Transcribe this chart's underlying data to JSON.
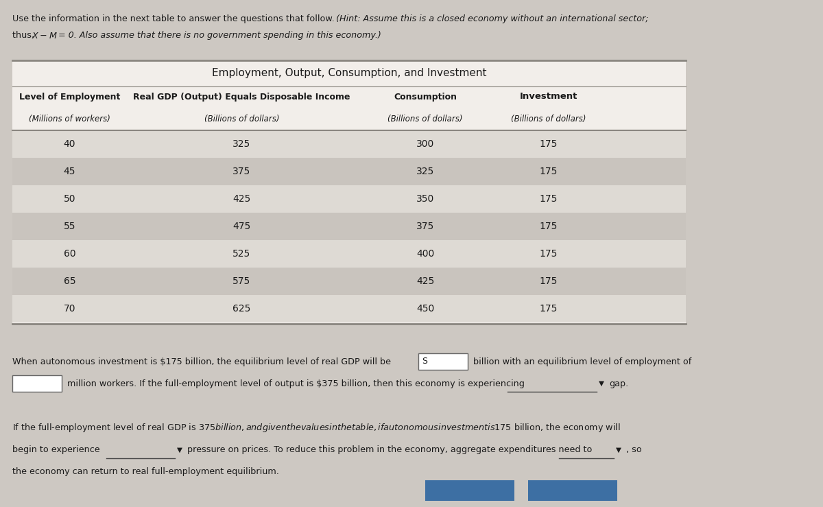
{
  "title": "Employment, Output, Consumption, and Investment",
  "col_headers": [
    "Level of Employment",
    "Real GDP (Output) Equals Disposable Income",
    "Consumption",
    "Investment"
  ],
  "col_subheaders": [
    "(Millions of workers)",
    "(Billions of dollars)",
    "(Billions of dollars)",
    "(Billions of dollars)"
  ],
  "rows": [
    [
      40,
      325,
      300,
      175
    ],
    [
      45,
      375,
      325,
      175
    ],
    [
      50,
      425,
      350,
      175
    ],
    [
      55,
      475,
      375,
      175
    ],
    [
      60,
      525,
      400,
      175
    ],
    [
      65,
      575,
      425,
      175
    ],
    [
      70,
      625,
      450,
      175
    ]
  ],
  "bg_color": "#cdc8c2",
  "table_bg_white": "#f2eeea",
  "row_light": "#dedad4",
  "row_dark": "#c9c4be",
  "text_color": "#1a1a1a",
  "button_color": "#3d6fa3",
  "line_color": "#8a8680"
}
